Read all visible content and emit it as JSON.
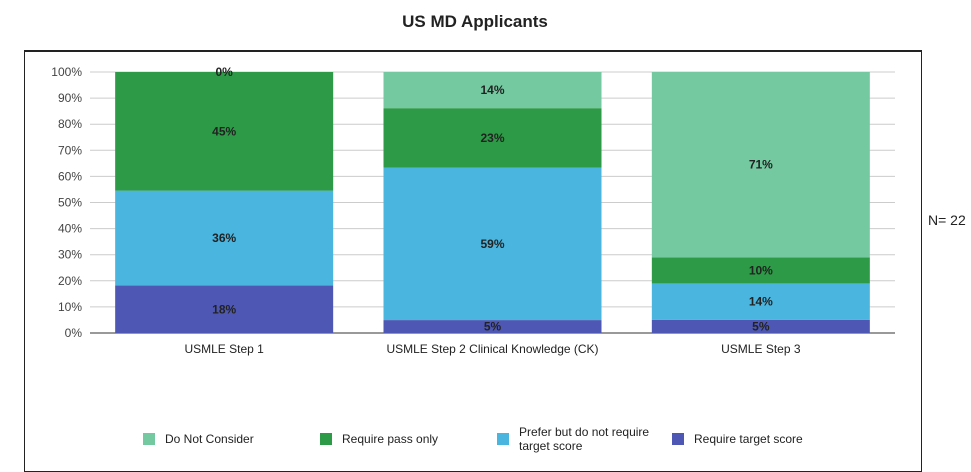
{
  "chart_data": {
    "type": "bar",
    "stacked": true,
    "title": "US MD Applicants",
    "annotation": "N= 22",
    "categories": [
      "USMLE Step 1",
      "USMLE Step 2 Clinical Knowledge (CK)",
      "USMLE Step 3"
    ],
    "series": [
      {
        "name": "Require target score",
        "color": "#4e58b4",
        "values": [
          18,
          5,
          5
        ]
      },
      {
        "name": "Prefer but do not require target score",
        "color": "#4ab5de",
        "values": [
          36,
          59,
          14
        ]
      },
      {
        "name": "Require pass only",
        "color": "#2c9a46",
        "values": [
          45,
          23,
          10
        ]
      },
      {
        "name": "Do Not Consider",
        "color": "#74c9a0",
        "values": [
          0,
          14,
          71
        ]
      }
    ],
    "legend_order": [
      "Do Not Consider",
      "Require pass only",
      "Prefer but do not require target score",
      "Require target score"
    ],
    "ylim": [
      0,
      100
    ],
    "yticks": [
      "0%",
      "10%",
      "20%",
      "30%",
      "40%",
      "50%",
      "60%",
      "70%",
      "80%",
      "90%",
      "100%"
    ],
    "grid": true,
    "legend_position": "bottom"
  }
}
